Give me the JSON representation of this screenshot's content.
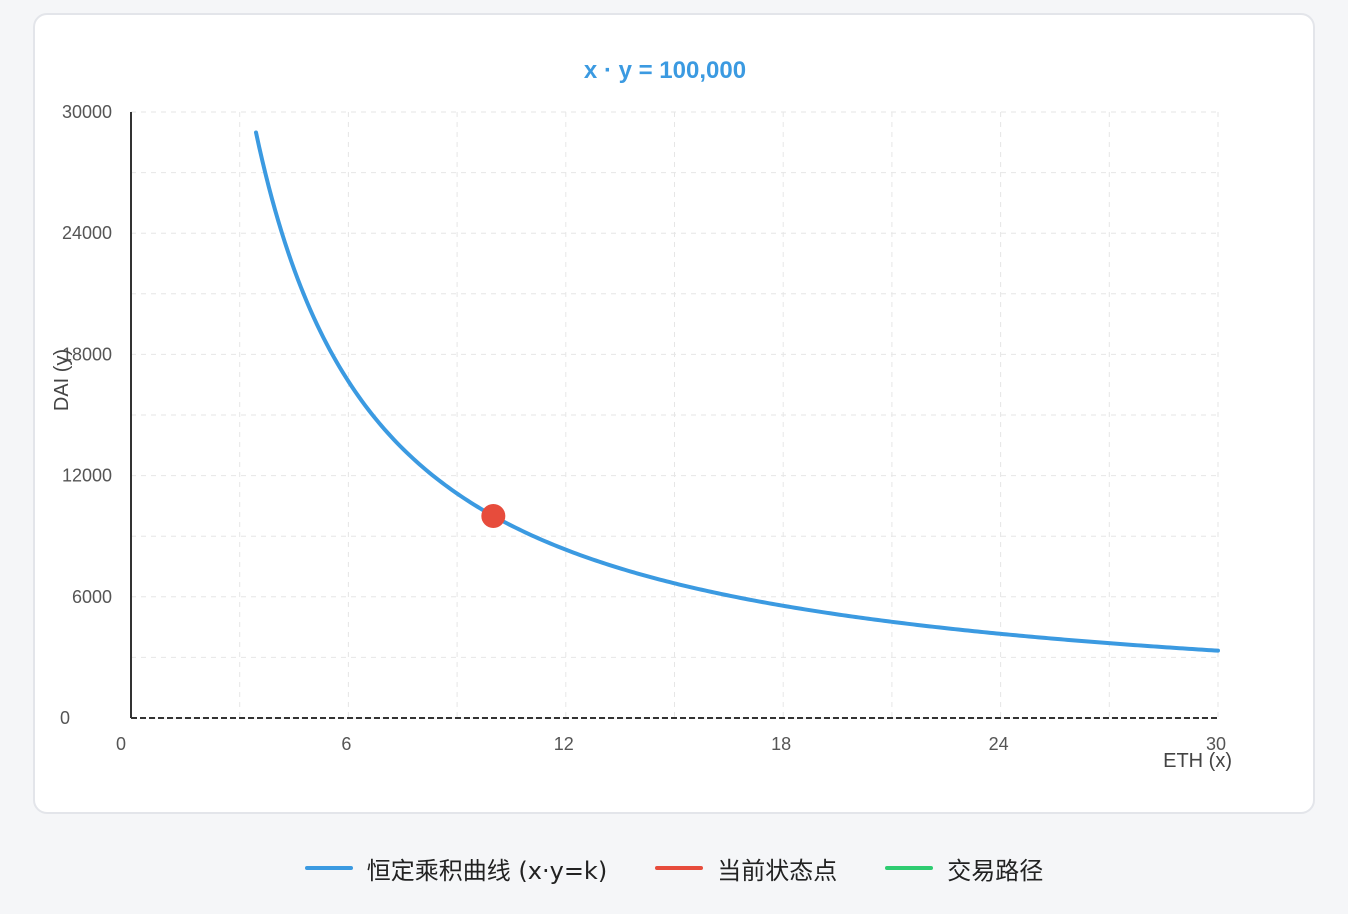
{
  "colors": {
    "curve": "#3b9ae1",
    "point": "#e74c3c",
    "path": "#2ecc71",
    "axis": "#333333",
    "grid": "#e6e6e6",
    "title": "#3b9ae1",
    "tick": "#555555"
  },
  "legend": [
    {
      "label": "恒定乘积曲线 (x·y=k)",
      "color": "#3b9ae1"
    },
    {
      "label": "当前状态点",
      "color": "#e74c3c"
    },
    {
      "label": "交易路径",
      "color": "#2ecc71"
    }
  ],
  "chart_data": {
    "type": "line",
    "title": "x · y = 100,000",
    "xlabel": "ETH (x)",
    "ylabel": "DAI (y)",
    "xlim": [
      0,
      30
    ],
    "ylim": [
      0,
      30000
    ],
    "x_ticks": [
      "0",
      "6",
      "12",
      "18",
      "24",
      "30"
    ],
    "y_ticks": [
      "0",
      "6000",
      "12000",
      "18000",
      "24000",
      "30000"
    ],
    "grid": true,
    "legend_position": "bottom",
    "series": [
      {
        "name": "恒定乘积曲线 (x·y=k)",
        "k": 100000,
        "x_range": [
          3.45,
          30
        ],
        "description": "y = 100000 / x"
      }
    ],
    "current_point": {
      "name": "当前状态点",
      "x": 10,
      "y": 10000
    },
    "trade_path": {
      "name": "交易路径",
      "points": []
    }
  }
}
